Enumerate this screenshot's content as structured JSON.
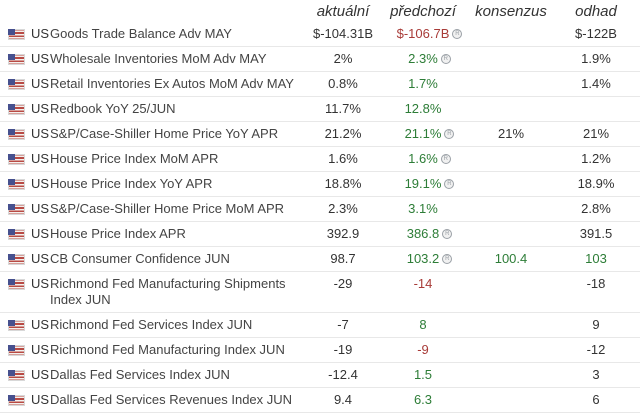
{
  "header": {
    "columns": [
      "aktuální",
      "předchozí",
      "konsenzus",
      "odhad"
    ]
  },
  "colors": {
    "green": "#2d7d37",
    "red": "#a83b38",
    "text": "#333333",
    "event_name": "#444444",
    "separator": "#e8e8e8",
    "revised_icon_gray": "#9aa0a6"
  },
  "icons": {
    "flag": "us-flag-icon",
    "revised": "revised-circle-icon",
    "revised_glyph": "R"
  },
  "rows": [
    {
      "country": "US",
      "event": "Goods Trade Balance Adv MAY",
      "actual": "$-104.31B",
      "previous": "$-106.7B",
      "previous_color": "red",
      "revised": true,
      "consensus": "",
      "consensus_color": "",
      "estimate": "$-122B",
      "estimate_color": ""
    },
    {
      "country": "US",
      "event": "Wholesale Inventories MoM Adv MAY",
      "actual": "2%",
      "previous": "2.3%",
      "previous_color": "green",
      "revised": true,
      "consensus": "",
      "consensus_color": "",
      "estimate": "1.9%",
      "estimate_color": ""
    },
    {
      "country": "US",
      "event": "Retail Inventories Ex Autos MoM Adv MAY",
      "actual": "0.8%",
      "previous": "1.7%",
      "previous_color": "green",
      "revised": false,
      "consensus": "",
      "consensus_color": "",
      "estimate": "1.4%",
      "estimate_color": ""
    },
    {
      "country": "US",
      "event": "Redbook YoY 25/JUN",
      "actual": "11.7%",
      "previous": "12.8%",
      "previous_color": "green",
      "revised": false,
      "consensus": "",
      "consensus_color": "",
      "estimate": "",
      "estimate_color": ""
    },
    {
      "country": "US",
      "event": "S&P/Case-Shiller Home Price YoY APR",
      "actual": "21.2%",
      "previous": "21.1%",
      "previous_color": "green",
      "revised": true,
      "consensus": "21%",
      "consensus_color": "",
      "estimate": "21%",
      "estimate_color": ""
    },
    {
      "country": "US",
      "event": "House Price Index MoM APR",
      "actual": "1.6%",
      "previous": "1.6%",
      "previous_color": "green",
      "revised": true,
      "consensus": "",
      "consensus_color": "",
      "estimate": "1.2%",
      "estimate_color": ""
    },
    {
      "country": "US",
      "event": "House Price Index YoY APR",
      "actual": "18.8%",
      "previous": "19.1%",
      "previous_color": "green",
      "revised": true,
      "consensus": "",
      "consensus_color": "",
      "estimate": "18.9%",
      "estimate_color": ""
    },
    {
      "country": "US",
      "event": "S&P/Case-Shiller Home Price MoM APR",
      "actual": "2.3%",
      "previous": "3.1%",
      "previous_color": "green",
      "revised": false,
      "consensus": "",
      "consensus_color": "",
      "estimate": "2.8%",
      "estimate_color": ""
    },
    {
      "country": "US",
      "event": "House Price Index APR",
      "actual": "392.9",
      "previous": "386.8",
      "previous_color": "green",
      "revised": true,
      "consensus": "",
      "consensus_color": "",
      "estimate": "391.5",
      "estimate_color": ""
    },
    {
      "country": "US",
      "event": "CB Consumer Confidence JUN",
      "actual": "98.7",
      "previous": "103.2",
      "previous_color": "green",
      "revised": true,
      "consensus": "100.4",
      "consensus_color": "green",
      "estimate": "103",
      "estimate_color": "green"
    },
    {
      "country": "US",
      "event": "Richmond Fed Manufacturing Shipments Index JUN",
      "actual": "-29",
      "previous": "-14",
      "previous_color": "red",
      "revised": false,
      "consensus": "",
      "consensus_color": "",
      "estimate": "-18",
      "estimate_color": ""
    },
    {
      "country": "US",
      "event": "Richmond Fed Services Index JUN",
      "actual": "-7",
      "previous": "8",
      "previous_color": "green",
      "revised": false,
      "consensus": "",
      "consensus_color": "",
      "estimate": "9",
      "estimate_color": ""
    },
    {
      "country": "US",
      "event": "Richmond Fed Manufacturing Index JUN",
      "actual": "-19",
      "previous": "-9",
      "previous_color": "red",
      "revised": false,
      "consensus": "",
      "consensus_color": "",
      "estimate": "-12",
      "estimate_color": ""
    },
    {
      "country": "US",
      "event": "Dallas Fed Services Index JUN",
      "actual": "-12.4",
      "previous": "1.5",
      "previous_color": "green",
      "revised": false,
      "consensus": "",
      "consensus_color": "",
      "estimate": "3",
      "estimate_color": ""
    },
    {
      "country": "US",
      "event": "Dallas Fed Services Revenues Index JUN",
      "actual": "9.4",
      "previous": "6.3",
      "previous_color": "green",
      "revised": false,
      "consensus": "",
      "consensus_color": "",
      "estimate": "6",
      "estimate_color": ""
    }
  ]
}
